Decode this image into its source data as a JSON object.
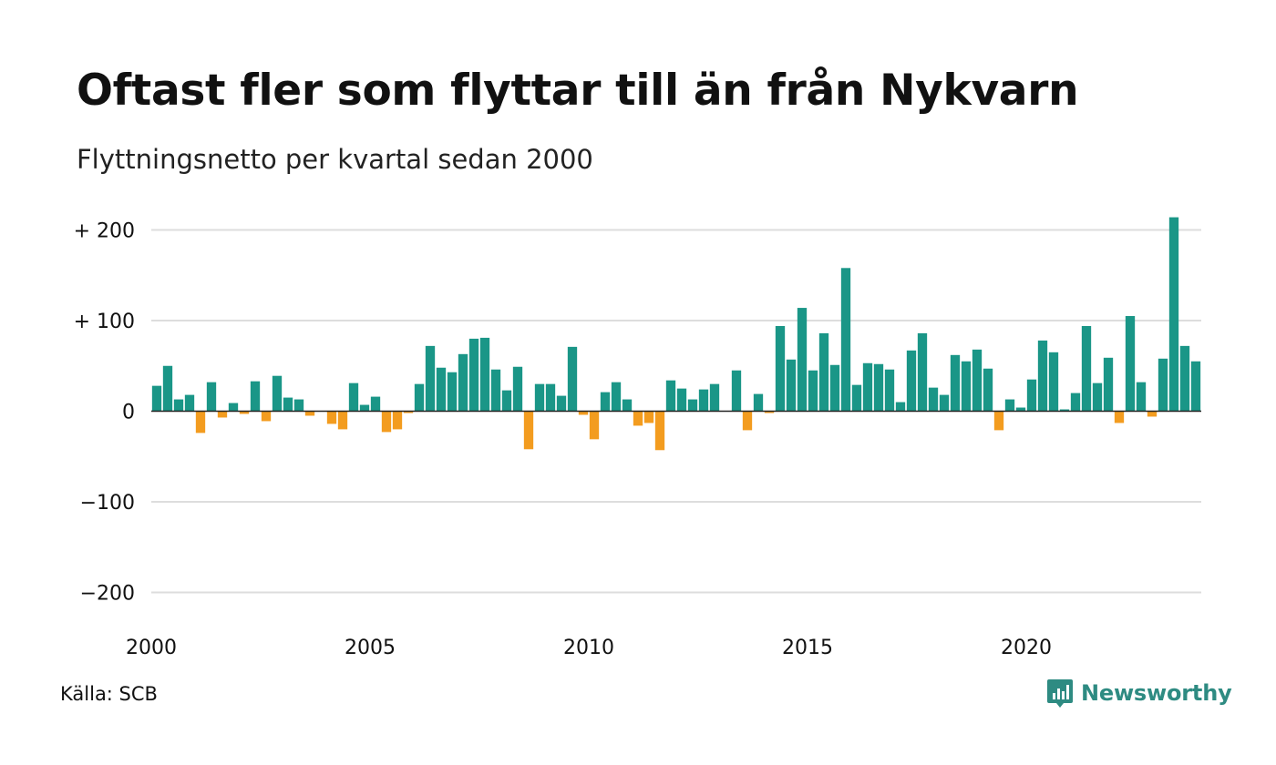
{
  "title": "Oftast fler som flyttar till än från Nykvarn",
  "subtitle": "Flyttningsnetto per kvartal sedan 2000",
  "source": "Källa: SCB",
  "brand": {
    "name": "Newsworthy",
    "icon": "newsworthy-logo-icon",
    "color": "#2e8b82"
  },
  "chart_data": {
    "type": "bar",
    "title": "Oftast fler som flyttar till än från Nykvarn",
    "subtitle": "Flyttningsnetto per kvartal sedan 2000",
    "xlabel": "",
    "ylabel": "",
    "ylim": [
      -200,
      220
    ],
    "yticks": [
      200,
      100,
      0,
      -100,
      -200
    ],
    "ytick_labels": [
      "+ 200",
      "+ 100",
      "0",
      "−100",
      "−200"
    ],
    "xticks": [
      "2000",
      "2005",
      "2010",
      "2015",
      "2020"
    ],
    "grid": true,
    "legend": "none",
    "colors": {
      "positive": "#1a9687",
      "negative": "#f39c1f",
      "grid": "#dddddd",
      "zero_line": "#222222"
    },
    "categories": [
      "2000 K1",
      "2000 K2",
      "2000 K3",
      "2000 K4",
      "2001 K1",
      "2001 K2",
      "2001 K3",
      "2001 K4",
      "2002 K1",
      "2002 K2",
      "2002 K3",
      "2002 K4",
      "2003 K1",
      "2003 K2",
      "2003 K3",
      "2003 K4",
      "2004 K1",
      "2004 K2",
      "2004 K3",
      "2004 K4",
      "2005 K1",
      "2005 K2",
      "2005 K3",
      "2005 K4",
      "2006 K1",
      "2006 K2",
      "2006 K3",
      "2006 K4",
      "2007 K1",
      "2007 K2",
      "2007 K3",
      "2007 K4",
      "2008 K1",
      "2008 K2",
      "2008 K3",
      "2008 K4",
      "2009 K1",
      "2009 K2",
      "2009 K3",
      "2009 K4",
      "2010 K1",
      "2010 K2",
      "2010 K3",
      "2010 K4",
      "2011 K1",
      "2011 K2",
      "2011 K3",
      "2011 K4",
      "2012 K1",
      "2012 K2",
      "2012 K3",
      "2012 K4",
      "2013 K1",
      "2013 K2",
      "2013 K3",
      "2013 K4",
      "2014 K1",
      "2014 K2",
      "2014 K3",
      "2014 K4",
      "2015 K1",
      "2015 K2",
      "2015 K3",
      "2015 K4",
      "2016 K1",
      "2016 K2",
      "2016 K3",
      "2016 K4",
      "2017 K1",
      "2017 K2",
      "2017 K3",
      "2017 K4",
      "2018 K1",
      "2018 K2",
      "2018 K3",
      "2018 K4",
      "2019 K1",
      "2019 K2",
      "2019 K3",
      "2019 K4",
      "2020 K1",
      "2020 K2",
      "2020 K3",
      "2020 K4",
      "2021 K1",
      "2021 K2",
      "2021 K3",
      "2021 K4",
      "2022 K1",
      "2022 K2",
      "2022 K3",
      "2022 K4",
      "2023 K1",
      "2023 K2",
      "2023 K3",
      "2023 K4"
    ],
    "values": [
      28,
      50,
      13,
      18,
      -24,
      32,
      -7,
      9,
      -3,
      33,
      -11,
      39,
      15,
      13,
      -5,
      0,
      -14,
      -20,
      31,
      7,
      16,
      -23,
      -20,
      -2,
      30,
      72,
      48,
      43,
      63,
      80,
      81,
      46,
      23,
      49,
      -42,
      30,
      30,
      17,
      71,
      -4,
      -31,
      21,
      32,
      13,
      -16,
      -13,
      -43,
      34,
      25,
      13,
      24,
      30,
      0,
      45,
      -21,
      19,
      -2,
      94,
      57,
      114,
      45,
      86,
      51,
      158,
      29,
      53,
      52,
      46,
      10,
      67,
      86,
      26,
      18,
      62,
      55,
      68,
      47,
      -21,
      13,
      4,
      35,
      78,
      65,
      2,
      20,
      94,
      31,
      59,
      -13,
      105,
      32,
      -6,
      58,
      214,
      72,
      55
    ]
  }
}
